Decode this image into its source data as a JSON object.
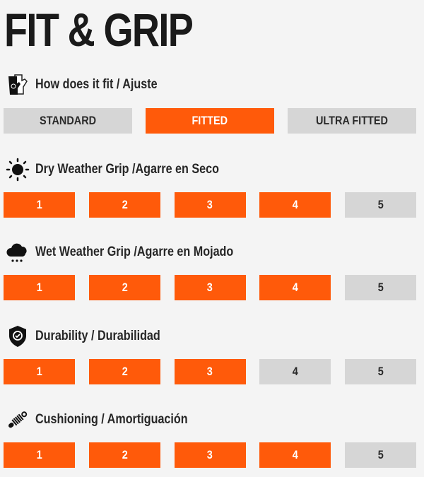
{
  "title": "FIT & GRIP",
  "colors": {
    "active": "#ff5a0a",
    "inactive": "#d6d6d6",
    "background": "#f4f4f4"
  },
  "fit": {
    "label": "How does it fit / Ajuste",
    "icon": "glove-icon",
    "options": [
      "STANDARD",
      "FITTED",
      "ULTRA FITTED"
    ],
    "selected": "FITTED"
  },
  "ratings": [
    {
      "label": "Dry Weather Grip /Agarre en Seco",
      "icon": "sun-icon",
      "scale": [
        "1",
        "2",
        "3",
        "4",
        "5"
      ],
      "value": 4
    },
    {
      "label": "Wet Weather Grip /Agarre en Mojado",
      "icon": "rain-cloud-icon",
      "scale": [
        "1",
        "2",
        "3",
        "4",
        "5"
      ],
      "value": 4
    },
    {
      "label": "Durability / Durabilidad",
      "icon": "shield-check-icon",
      "scale": [
        "1",
        "2",
        "3",
        "4",
        "5"
      ],
      "value": 3
    },
    {
      "label": "Cushioning / Amortiguación",
      "icon": "spring-icon",
      "scale": [
        "1",
        "2",
        "3",
        "4",
        "5"
      ],
      "value": 4
    }
  ]
}
